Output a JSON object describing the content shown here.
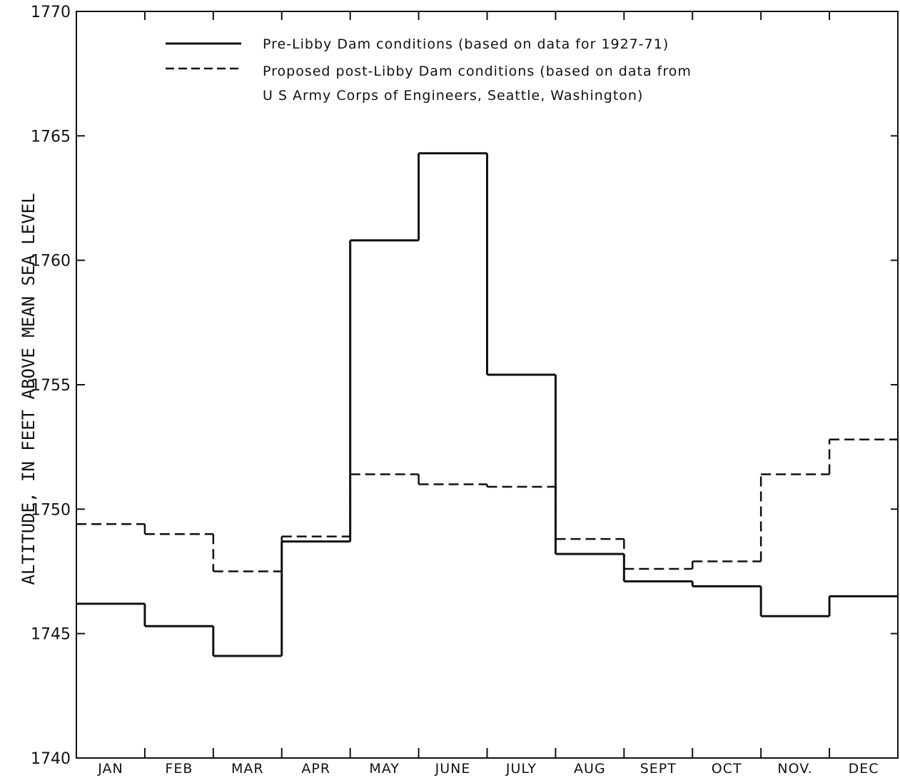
{
  "chart_data": {
    "type": "line",
    "step": true,
    "ylabel": "ALTITUDE, IN FEET ABOVE MEAN SEA LEVEL",
    "ylim": [
      1740,
      1770
    ],
    "yticks": [
      1740,
      1745,
      1750,
      1755,
      1760,
      1765,
      1770
    ],
    "ytick_labels": [
      "1740",
      "1745",
      "1750",
      "1755",
      "1760",
      "1765",
      "1770"
    ],
    "categories": [
      "JAN",
      "FEB",
      "MAR",
      "APR",
      "MAY",
      "JUNE",
      "JULY",
      "AUG",
      "SEPT",
      "OCT",
      "NOV.",
      "DEC"
    ],
    "grid": false,
    "legend": {
      "placement": "top-left",
      "lines": [
        "Pre-Libby Dam conditions (based on data for 1927-71)",
        "Proposed post-Libby Dam conditions (based on data from",
        "U S Army Corps of Engineers, Seattle, Washington)"
      ]
    },
    "series": [
      {
        "name": "Pre-Libby Dam conditions (based on data for 1927-71)",
        "style": "solid",
        "color": "#111111",
        "values": [
          1746.2,
          1745.3,
          1744.1,
          1748.7,
          1760.8,
          1764.3,
          1755.4,
          1748.2,
          1747.1,
          1746.9,
          1745.7,
          1746.5
        ]
      },
      {
        "name": "Proposed post-Libby Dam conditions (based on data from U S Army Corps of Engineers, Seattle, Washington)",
        "style": "dashed",
        "color": "#111111",
        "values": [
          1749.4,
          1749.0,
          1747.5,
          1748.9,
          1751.4,
          1751.0,
          1750.9,
          1748.8,
          1747.6,
          1747.9,
          1751.4,
          1752.8
        ]
      }
    ]
  }
}
